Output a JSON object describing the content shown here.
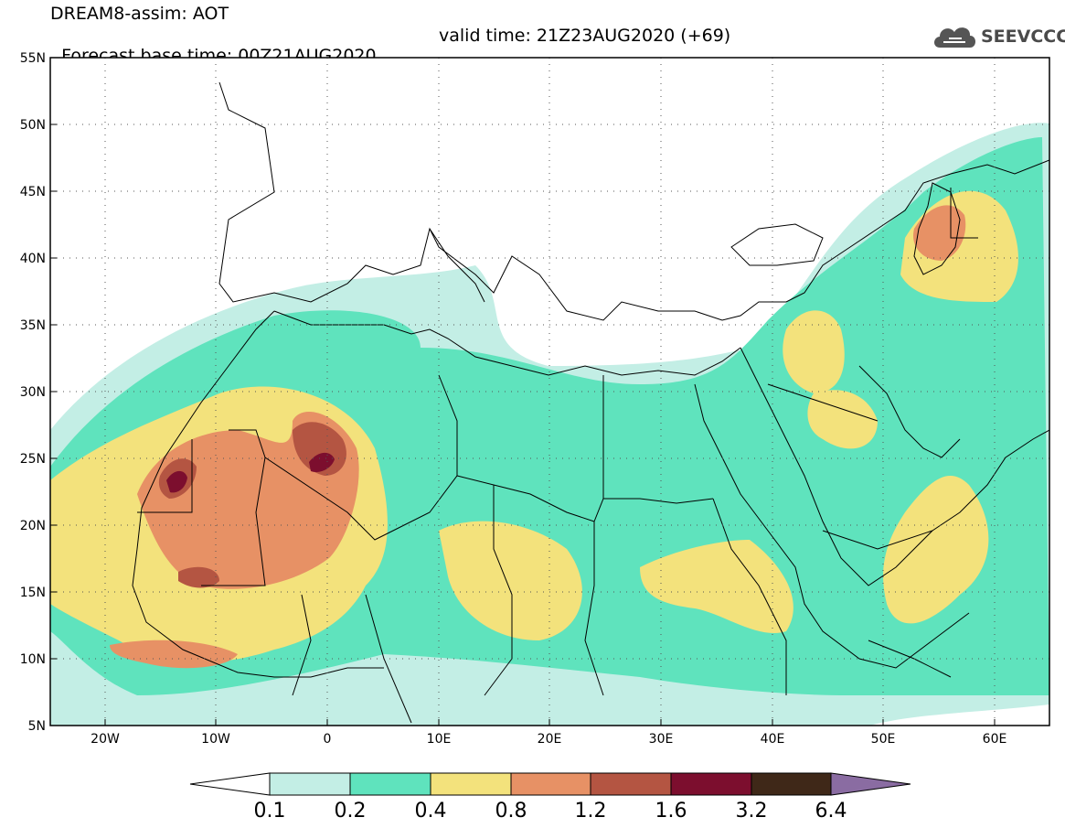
{
  "header": {
    "line1": "DREAM8-assim: AOT",
    "base_time": "Forecast base time: 00Z21AUG2020",
    "valid_time": "valid time: 21Z23AUG2020 (+69)"
  },
  "logo": {
    "text": "SEEVCCC",
    "icon": "cloud-icon"
  },
  "map": {
    "lat_labels": [
      "55N",
      "50N",
      "45N",
      "40N",
      "35N",
      "30N",
      "25N",
      "20N",
      "15N",
      "10N",
      "5N"
    ],
    "lon_labels": [
      "20W",
      "10W",
      "0",
      "10E",
      "20E",
      "30E",
      "40E",
      "50E",
      "60E"
    ],
    "lat_range": [
      5,
      55
    ],
    "lon_range": [
      -25,
      65
    ],
    "grid": "dotted"
  },
  "colorbar": {
    "levels": [
      "0.1",
      "0.2",
      "0.4",
      "0.8",
      "1.2",
      "1.6",
      "3.2",
      "6.4"
    ],
    "colors": {
      "under": "#ffffff",
      "c1": "#c3eee5",
      "c2": "#5fe3bd",
      "c3": "#f3e27c",
      "c4": "#e79165",
      "c5": "#b45542",
      "c6": "#7c0e2e",
      "c7": "#3f2818",
      "over": "#8a6ca2"
    }
  }
}
